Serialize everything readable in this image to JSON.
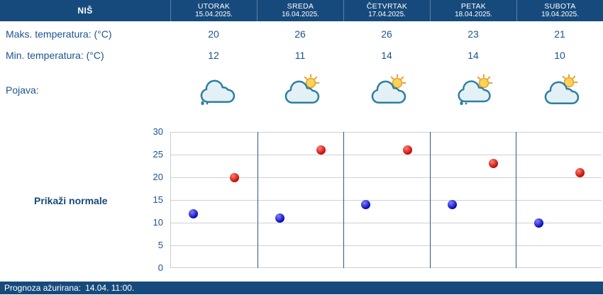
{
  "header": {
    "city": "NIŠ",
    "days": [
      {
        "name": "UTORAK",
        "date": "15.04.2025."
      },
      {
        "name": "SREDA",
        "date": "16.04.2025."
      },
      {
        "name": "ČETVRTAK",
        "date": "17.04.2025."
      },
      {
        "name": "PETAK",
        "date": "18.04.2025."
      },
      {
        "name": "SUBOTA",
        "date": "19.04.2025."
      }
    ]
  },
  "rows": {
    "max_label": "Maks. temperatura: (°C)",
    "min_label": "Min. temperatura: (°C)",
    "pojava_label": "Pojava:",
    "max_values": [
      20,
      26,
      26,
      23,
      21
    ],
    "min_values": [
      12,
      11,
      14,
      14,
      10
    ],
    "icons": [
      "cloud-rain-icon",
      "sun-cloud-icon",
      "sun-cloud-icon",
      "sun-cloud-rain-icon",
      "sun-cloud-icon"
    ]
  },
  "controls": {
    "show_normals": "Prikaži normale"
  },
  "chart_data": {
    "type": "scatter",
    "categories": [
      "UTORAK 15.04.2025.",
      "SREDA 16.04.2025.",
      "ČETVRTAK 17.04.2025.",
      "PETAK 18.04.2025.",
      "SUBOTA 19.04.2025."
    ],
    "series": [
      {
        "name": "Maks. temperatura (°C)",
        "color": "#c00000",
        "values": [
          20,
          26,
          26,
          23,
          21
        ]
      },
      {
        "name": "Min. temperatura (°C)",
        "color": "#0000b4",
        "values": [
          12,
          11,
          14,
          14,
          10
        ]
      }
    ],
    "ylim": [
      0,
      30
    ],
    "yticks": [
      0,
      5,
      10,
      15,
      20,
      25,
      30
    ],
    "grid": true,
    "legend": "none"
  },
  "colors": {
    "header_bg": "#174a7c",
    "text_blue": "#1c5390",
    "separator_blue": "#33567f",
    "gridline": "#ccd1d6"
  },
  "footer": {
    "label": "Prognoza ažurirana:",
    "time": "14.04. 11:00."
  }
}
